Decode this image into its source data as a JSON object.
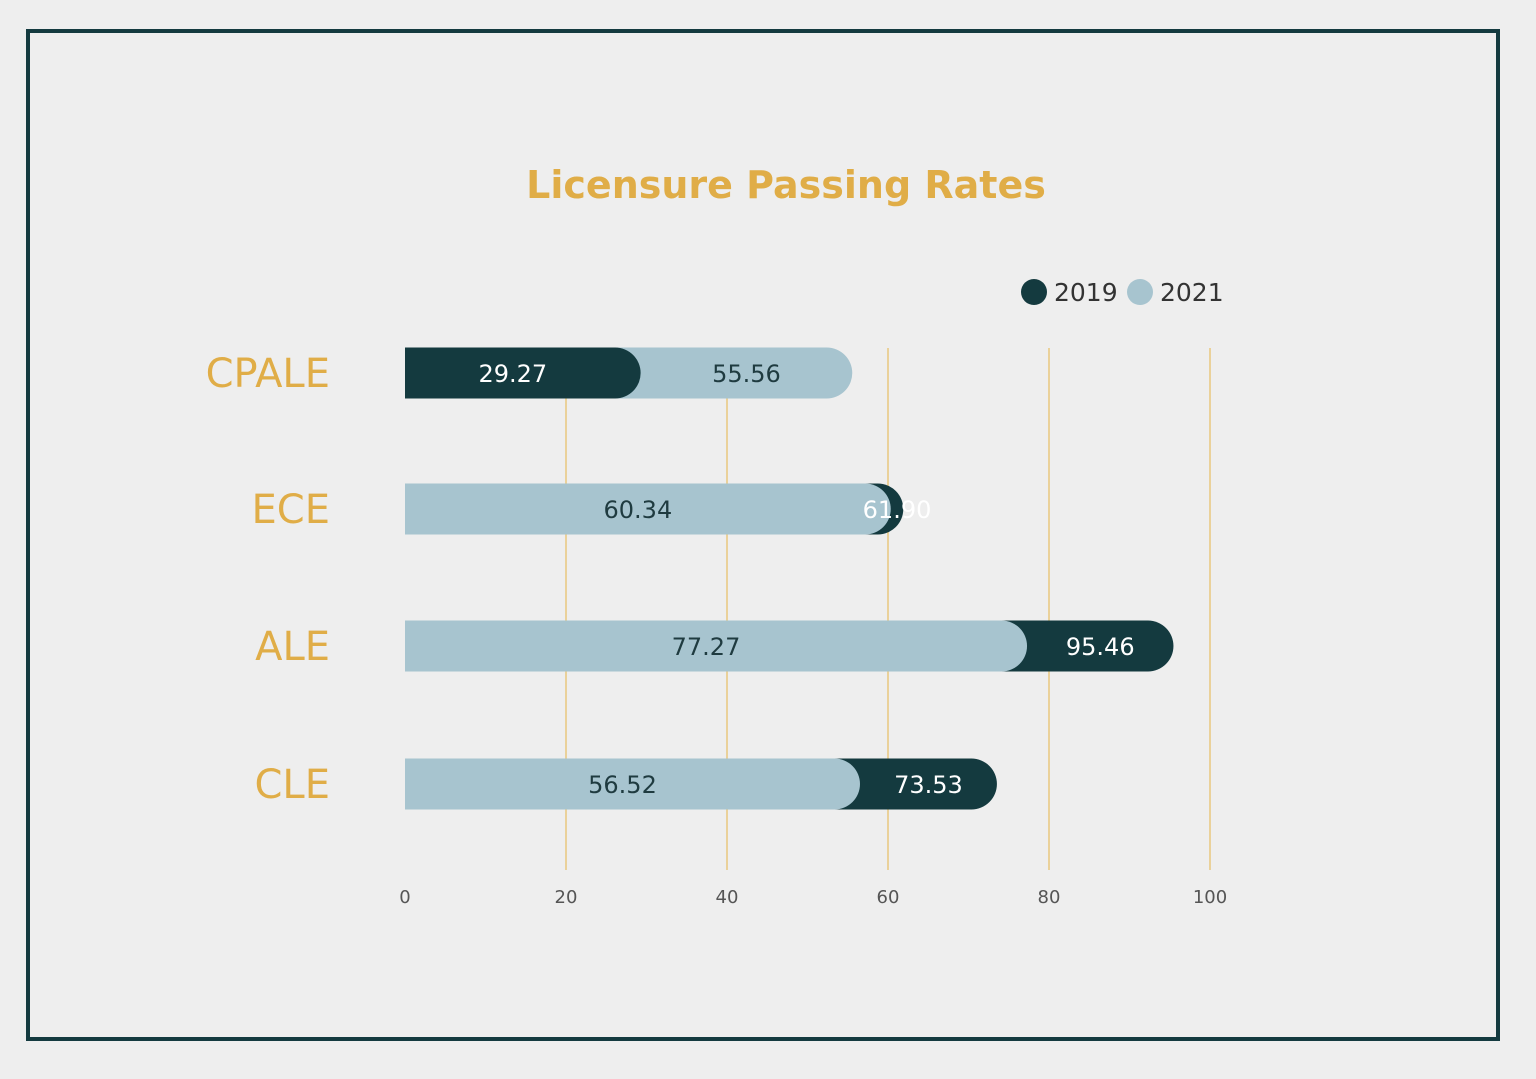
{
  "chart_data": {
    "type": "bar",
    "orientation": "horizontal",
    "title": "Licensure Passing Rates",
    "categories": [
      "CPALE",
      "ECE",
      "ALE",
      "CLE"
    ],
    "series": [
      {
        "name": "2019",
        "values": [
          29.27,
          61.9,
          95.46,
          73.53
        ],
        "color": "#143a3f",
        "label_color": "#ffffff"
      },
      {
        "name": "2021",
        "values": [
          55.56,
          60.34,
          77.27,
          56.52
        ],
        "color": "#a7c4cf",
        "label_color": "#1f3b40"
      }
    ],
    "value_labels": [
      [
        "29.27",
        "61.90",
        "95.46",
        "73.53"
      ],
      [
        "55.56",
        "60.34",
        "77.27",
        "56.52"
      ]
    ],
    "xlim": [
      0,
      100
    ],
    "x_ticks": [
      0,
      20,
      40,
      60,
      80,
      100
    ],
    "x_tick_labels": [
      "0",
      "20",
      "40",
      "60",
      "80",
      "100"
    ],
    "grid": true,
    "grid_color": "#e8c77e",
    "legend_position": "top-right",
    "title_color": "#e0ad47",
    "category_label_color": "#e0ad47",
    "frame_color": "#143a3f",
    "background_color": "#eeeeee"
  }
}
